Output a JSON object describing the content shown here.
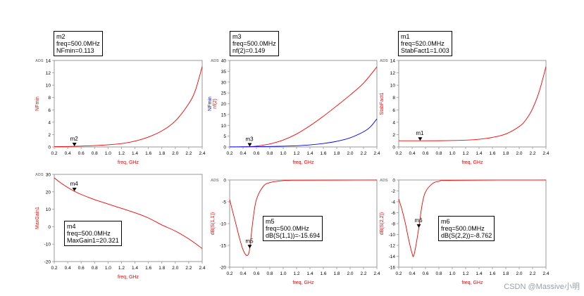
{
  "chart_data": [
    {
      "id": "nfmin",
      "type": "line",
      "tag": "ADS",
      "xlabel": "freq, GHz",
      "ylabel_series": [
        {
          "text": "NFmin",
          "color": "#ff0000"
        }
      ],
      "xlim": [
        0.2,
        2.4
      ],
      "ylim": [
        0,
        14
      ],
      "x_ticks": [
        "0.2",
        "0.4",
        "0.6",
        "0.8",
        "1.0",
        "1.2",
        "1.4",
        "1.6",
        "1.8",
        "2.0",
        "2.2",
        "2.4"
      ],
      "y_ticks": [
        "0",
        "2",
        "4",
        "6",
        "8",
        "10",
        "12",
        "14"
      ],
      "series": [
        {
          "color": "#ff0000",
          "x": [
            0.2,
            0.4,
            0.6,
            0.8,
            1.0,
            1.2,
            1.4,
            1.6,
            1.8,
            2.0,
            2.2,
            2.3,
            2.4
          ],
          "y": [
            0.05,
            0.08,
            0.14,
            0.22,
            0.35,
            0.55,
            0.95,
            1.6,
            2.6,
            4.2,
            7.0,
            9.2,
            13.0
          ]
        }
      ],
      "marker": {
        "name": "m2",
        "x": 0.5,
        "y": 0.113
      },
      "box_lines": [
        "m2",
        "freq=500.0MHz",
        "NFmin=0.113"
      ]
    },
    {
      "id": "nf2",
      "type": "line",
      "tag": "ADS",
      "xlabel": "freq, GHz",
      "ylabel_series": [
        {
          "text": "NFmin",
          "color": "#0000ff"
        },
        {
          "text": "nf(2)",
          "color": "#ff0000"
        }
      ],
      "xlim": [
        0.2,
        2.4
      ],
      "ylim": [
        0,
        40
      ],
      "x_ticks": [
        "0.2",
        "0.4",
        "0.6",
        "0.8",
        "1.0",
        "1.2",
        "1.4",
        "1.6",
        "1.8",
        "2.0",
        "2.2",
        "2.4"
      ],
      "y_ticks": [
        "0",
        "5",
        "10",
        "15",
        "20",
        "25",
        "30",
        "35",
        "40"
      ],
      "series": [
        {
          "color": "#ff0000",
          "x": [
            0.2,
            0.4,
            0.5,
            0.6,
            0.8,
            1.0,
            1.2,
            1.4,
            1.6,
            1.8,
            2.0,
            2.2,
            2.4
          ],
          "y": [
            0.0,
            0.05,
            0.15,
            0.4,
            1.4,
            3.2,
            6.0,
            9.8,
            14.2,
            19.0,
            24.0,
            29.5,
            37.0
          ]
        },
        {
          "color": "#0000ff",
          "x": [
            0.2,
            0.4,
            0.6,
            0.8,
            1.0,
            1.2,
            1.4,
            1.6,
            1.8,
            2.0,
            2.2,
            2.3,
            2.4
          ],
          "y": [
            0.05,
            0.08,
            0.14,
            0.22,
            0.35,
            0.55,
            0.95,
            1.6,
            2.6,
            4.2,
            7.0,
            9.2,
            13.0
          ]
        }
      ],
      "marker": {
        "name": "m3",
        "x": 0.5,
        "y": 0.149
      },
      "box_lines": [
        "m3",
        "freq=500.0MHz",
        "nf(2)=0.149"
      ]
    },
    {
      "id": "stab",
      "type": "line",
      "tag": "ADS",
      "xlabel": "freq, GHz",
      "ylabel_series": [
        {
          "text": "StabFact1",
          "color": "#ff0000"
        }
      ],
      "xlim": [
        0.2,
        2.4
      ],
      "ylim": [
        0,
        14
      ],
      "x_ticks": [
        "0.2",
        "0.4",
        "0.6",
        "0.8",
        "1.0",
        "1.2",
        "1.4",
        "1.6",
        "1.8",
        "2.0",
        "2.2",
        "2.4"
      ],
      "y_ticks": [
        "0",
        "2",
        "4",
        "6",
        "8",
        "10",
        "12",
        "14"
      ],
      "series": [
        {
          "color": "#ff0000",
          "x": [
            0.2,
            0.52,
            0.8,
            1.0,
            1.2,
            1.4,
            1.6,
            1.8,
            2.0,
            2.1,
            2.2,
            2.3,
            2.4
          ],
          "y": [
            1.003,
            1.003,
            1.01,
            1.04,
            1.1,
            1.25,
            1.55,
            2.1,
            3.3,
            4.4,
            6.2,
            9.0,
            13.0
          ]
        }
      ],
      "marker": {
        "name": "m1",
        "x": 0.52,
        "y": 1.003
      },
      "box_lines": [
        "m1",
        "freq=520.0MHz",
        "StabFact1=1.003"
      ]
    },
    {
      "id": "maxgain",
      "type": "line",
      "tag": "ADS",
      "xlabel": "freq, GHz",
      "ylabel_series": [
        {
          "text": "MaxGain1",
          "color": "#ff0000"
        }
      ],
      "xlim": [
        0.2,
        2.4
      ],
      "ylim": [
        -20,
        30
      ],
      "x_ticks": [
        "0.2",
        "0.4",
        "0.6",
        "0.8",
        "1.0",
        "1.2",
        "1.4",
        "1.6",
        "1.8",
        "2.0",
        "2.2",
        "2.4"
      ],
      "y_ticks": [
        "-20",
        "-10",
        "0",
        "10",
        "20",
        "30"
      ],
      "series": [
        {
          "color": "#ff0000",
          "x": [
            0.2,
            0.3,
            0.4,
            0.5,
            0.6,
            0.8,
            1.0,
            1.2,
            1.4,
            1.6,
            1.8,
            2.0,
            2.2,
            2.4
          ],
          "y": [
            28,
            25,
            22.5,
            20.3,
            18.5,
            15.5,
            13,
            10.5,
            8,
            5,
            1,
            -2.5,
            -7,
            -12.5
          ]
        }
      ],
      "marker": {
        "name": "m4",
        "x": 0.5,
        "y": 20.321
      },
      "box_lines": [
        "m4",
        "freq=500.0MHz",
        "MaxGain1=20.321"
      ]
    },
    {
      "id": "s11",
      "type": "line",
      "tag": "ADS",
      "xlabel": "freq, GHz",
      "ylabel_series": [
        {
          "text": "dB(S(1,1))",
          "color": "#ff0000"
        }
      ],
      "xlim": [
        0.2,
        2.4
      ],
      "ylim": [
        -20,
        0
      ],
      "x_ticks": [
        "0.2",
        "0.4",
        "0.6",
        "0.8",
        "1.0",
        "1.2",
        "1.4",
        "1.6",
        "1.8",
        "2.0",
        "2.2",
        "2.4"
      ],
      "y_ticks": [
        "-20",
        "-15",
        "-10",
        "-5",
        "0"
      ],
      "series": [
        {
          "color": "#ff0000",
          "x": [
            0.2,
            0.25,
            0.3,
            0.35,
            0.4,
            0.45,
            0.48,
            0.5,
            0.55,
            0.6,
            0.7,
            0.8,
            1.0,
            1.2,
            2.4
          ],
          "y": [
            -4.5,
            -7.5,
            -10.5,
            -13.5,
            -16,
            -17.3,
            -17.0,
            -15.694,
            -9,
            -4.5,
            -1.5,
            -0.6,
            -0.15,
            -0.05,
            0
          ]
        }
      ],
      "marker": {
        "name": "m5",
        "x": 0.5,
        "y": -15.694
      },
      "box_lines": [
        "m5",
        "freq=500.0MHz",
        "dB(S(1,1))=-15.694"
      ]
    },
    {
      "id": "s22",
      "type": "line",
      "tag": "ADS",
      "xlabel": "freq, GHz",
      "ylabel_series": [
        {
          "text": "dB(S(2,2))",
          "color": "#ff0000"
        }
      ],
      "xlim": [
        0.2,
        2.4
      ],
      "ylim": [
        -16,
        0
      ],
      "x_ticks": [
        "0.2",
        "0.4",
        "0.6",
        "0.8",
        "1.0",
        "1.2",
        "1.4",
        "1.6",
        "1.8",
        "2.0",
        "2.2",
        "2.4"
      ],
      "y_ticks": [
        "-16",
        "-14",
        "-12",
        "-10",
        "-8",
        "-6",
        "-4",
        "-2",
        "0"
      ],
      "series": [
        {
          "color": "#ff0000",
          "x": [
            0.2,
            0.25,
            0.3,
            0.35,
            0.4,
            0.42,
            0.45,
            0.5,
            0.55,
            0.6,
            0.7,
            0.8,
            1.0,
            2.4
          ],
          "y": [
            -3.5,
            -5.5,
            -8,
            -11,
            -13.5,
            -14,
            -12.5,
            -8.762,
            -4.5,
            -2.2,
            -0.7,
            -0.25,
            -0.05,
            0
          ]
        }
      ],
      "marker": {
        "name": "m6",
        "x": 0.5,
        "y": -8.762
      },
      "box_lines": [
        "m6",
        "freq=500.0MHz",
        "dB(S(2,2))=-8.762"
      ]
    }
  ],
  "watermark": "CSDN @Massive小明"
}
